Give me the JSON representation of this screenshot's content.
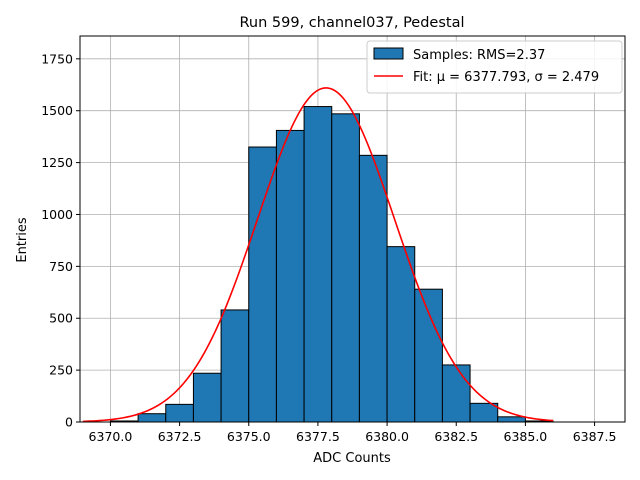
{
  "chart_data": {
    "type": "bar",
    "title": "Run 599, channel037, Pedestal",
    "xlabel": "ADC Counts",
    "ylabel": "Entries",
    "xlim": [
      6368.9,
      6388.6
    ],
    "ylim": [
      0,
      1860
    ],
    "grid": true,
    "legend_position": "top-right",
    "xticks": [
      6370.0,
      6372.5,
      6375.0,
      6377.5,
      6380.0,
      6382.5,
      6385.0,
      6387.5
    ],
    "xtick_labels": [
      "6370.0",
      "6372.5",
      "6375.0",
      "6377.5",
      "6380.0",
      "6382.5",
      "6385.0",
      "6387.5"
    ],
    "yticks": [
      0,
      250,
      500,
      750,
      1000,
      1250,
      1500,
      1750
    ],
    "ytick_labels": [
      "0",
      "250",
      "500",
      "750",
      "1000",
      "1250",
      "1500",
      "1750"
    ],
    "histogram": {
      "name": "Samples: RMS=2.37",
      "color": "#1f77b4",
      "edge_color": "#000000",
      "bin_edges": [
        6370,
        6371,
        6372,
        6373,
        6374,
        6375,
        6376,
        6377,
        6378,
        6379,
        6380,
        6381,
        6382,
        6383,
        6384,
        6385,
        6386
      ],
      "counts": [
        5,
        40,
        85,
        235,
        540,
        1325,
        1405,
        1520,
        1485,
        1285,
        845,
        640,
        275,
        90,
        25,
        5
      ]
    },
    "fit": {
      "name": "Fit: μ = 6377.793, σ = 2.479",
      "color": "#ff0000",
      "mu": 6377.793,
      "sigma": 2.479,
      "amplitude": 1610,
      "x_range": [
        6369,
        6386
      ]
    }
  }
}
